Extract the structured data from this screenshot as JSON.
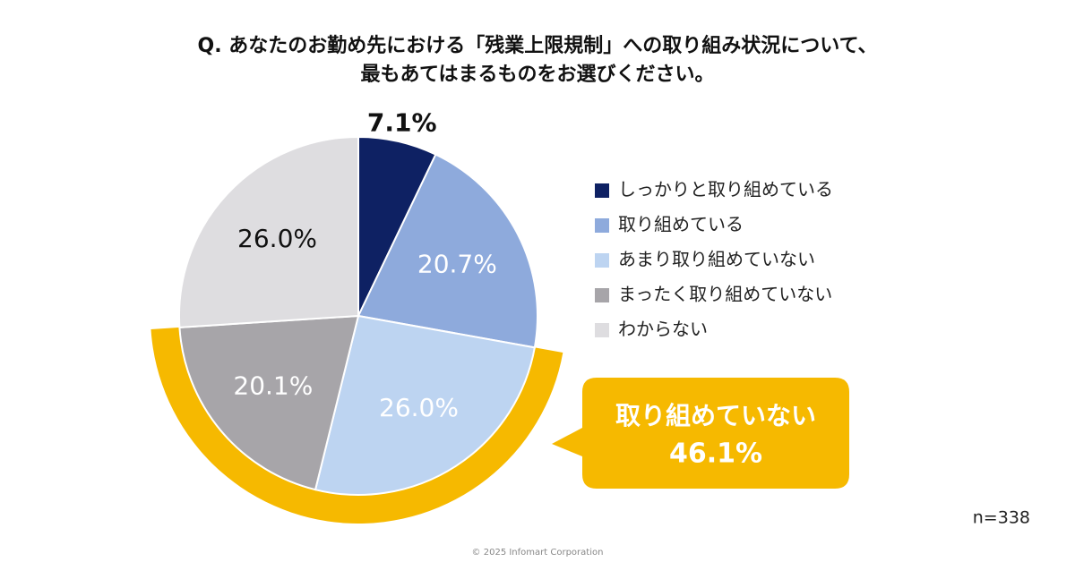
{
  "chart_data": {
    "type": "pie",
    "title": [
      "Q. あなたのお勤め先における「残業上限規制」への取り組み状況について、",
      "最もあてはまるものをお選びください。"
    ],
    "categories": [
      "しっかりと取り組めている",
      "取り組めている",
      "あまり取り組めていない",
      "まったく取り組めていない",
      "わからない"
    ],
    "values": [
      7.1,
      20.7,
      26.0,
      20.1,
      26.0
    ],
    "value_labels": [
      "7.1%",
      "20.7%",
      "26.0%",
      "20.1%",
      "26.0%"
    ],
    "colors": [
      "#0e2163",
      "#8eaadc",
      "#bdd4f1",
      "#a7a5a9",
      "#dedde0"
    ],
    "label_colors": [
      "#111111",
      "#ffffff",
      "#ffffff",
      "#ffffff",
      "#111111"
    ],
    "annotation": {
      "text": "取り組めていない",
      "value": 46.1,
      "value_label": "46.1%",
      "color": "#f6b900"
    },
    "note": "n=338",
    "footer": "© 2025 Infomart Corporation"
  }
}
